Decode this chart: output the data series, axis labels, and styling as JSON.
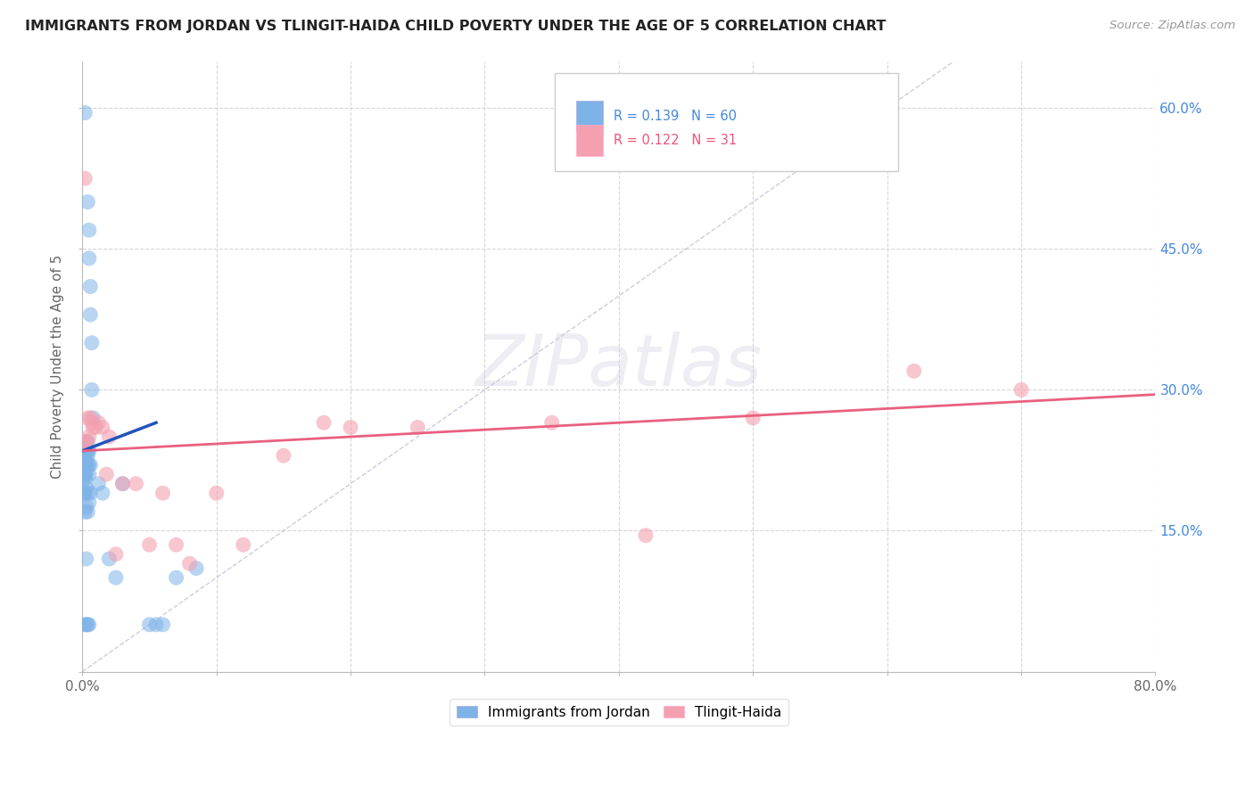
{
  "title": "IMMIGRANTS FROM JORDAN VS TLINGIT-HAIDA CHILD POVERTY UNDER THE AGE OF 5 CORRELATION CHART",
  "source": "Source: ZipAtlas.com",
  "ylabel": "Child Poverty Under the Age of 5",
  "legend_labels": [
    "Immigrants from Jordan",
    "Tlingit-Haida"
  ],
  "legend_R": [
    0.139,
    0.122
  ],
  "legend_N": [
    60,
    31
  ],
  "blue_color": "#7EB3E8",
  "pink_color": "#F4A0B0",
  "trend_blue": "#2255BB",
  "trend_pink": "#E86080",
  "watermark_text": "ZIPatlas",
  "xlim": [
    0.0,
    0.8
  ],
  "ylim": [
    0.0,
    0.65
  ],
  "xticks": [
    0.0,
    0.1,
    0.2,
    0.3,
    0.4,
    0.5,
    0.6,
    0.7,
    0.8
  ],
  "yticks": [
    0.0,
    0.15,
    0.3,
    0.45,
    0.6
  ],
  "ytick_labels": [
    "",
    "15.0%",
    "30.0%",
    "45.0%",
    "60.0%"
  ],
  "xtick_labels": [
    "0.0%",
    "",
    "",
    "",
    "",
    "",
    "",
    "",
    "80.0%"
  ],
  "blue_x": [
    0.002,
    0.004,
    0.005,
    0.005,
    0.006,
    0.006,
    0.007,
    0.007,
    0.008,
    0.001,
    0.001,
    0.001,
    0.001,
    0.001,
    0.001,
    0.001,
    0.001,
    0.001,
    0.002,
    0.002,
    0.002,
    0.002,
    0.002,
    0.002,
    0.002,
    0.002,
    0.002,
    0.003,
    0.003,
    0.003,
    0.003,
    0.003,
    0.003,
    0.003,
    0.003,
    0.003,
    0.004,
    0.004,
    0.004,
    0.004,
    0.004,
    0.004,
    0.004,
    0.005,
    0.005,
    0.005,
    0.005,
    0.005,
    0.006,
    0.006,
    0.012,
    0.015,
    0.02,
    0.025,
    0.03,
    0.05,
    0.055,
    0.06,
    0.07,
    0.085
  ],
  "blue_y": [
    0.595,
    0.5,
    0.47,
    0.44,
    0.41,
    0.38,
    0.35,
    0.3,
    0.27,
    0.24,
    0.235,
    0.23,
    0.225,
    0.22,
    0.215,
    0.21,
    0.205,
    0.19,
    0.24,
    0.23,
    0.225,
    0.22,
    0.21,
    0.205,
    0.19,
    0.17,
    0.05,
    0.245,
    0.24,
    0.235,
    0.22,
    0.21,
    0.195,
    0.175,
    0.12,
    0.05,
    0.245,
    0.235,
    0.23,
    0.22,
    0.19,
    0.17,
    0.05,
    0.235,
    0.22,
    0.21,
    0.18,
    0.05,
    0.22,
    0.19,
    0.2,
    0.19,
    0.12,
    0.1,
    0.2,
    0.05,
    0.05,
    0.05,
    0.1,
    0.11
  ],
  "pink_x": [
    0.002,
    0.003,
    0.003,
    0.004,
    0.005,
    0.006,
    0.007,
    0.008,
    0.01,
    0.012,
    0.015,
    0.018,
    0.02,
    0.025,
    0.03,
    0.04,
    0.05,
    0.06,
    0.07,
    0.08,
    0.1,
    0.12,
    0.15,
    0.18,
    0.2,
    0.25,
    0.35,
    0.42,
    0.5,
    0.62,
    0.7
  ],
  "pink_y": [
    0.525,
    0.245,
    0.245,
    0.27,
    0.25,
    0.27,
    0.265,
    0.26,
    0.26,
    0.265,
    0.26,
    0.21,
    0.25,
    0.125,
    0.2,
    0.2,
    0.135,
    0.19,
    0.135,
    0.115,
    0.19,
    0.135,
    0.23,
    0.265,
    0.26,
    0.26,
    0.265,
    0.145,
    0.27,
    0.32,
    0.3
  ],
  "blue_trend_x": [
    0.0,
    0.055
  ],
  "blue_trend_y": [
    0.235,
    0.265
  ],
  "pink_trend_x": [
    0.0,
    0.8
  ],
  "pink_trend_y": [
    0.235,
    0.295
  ]
}
